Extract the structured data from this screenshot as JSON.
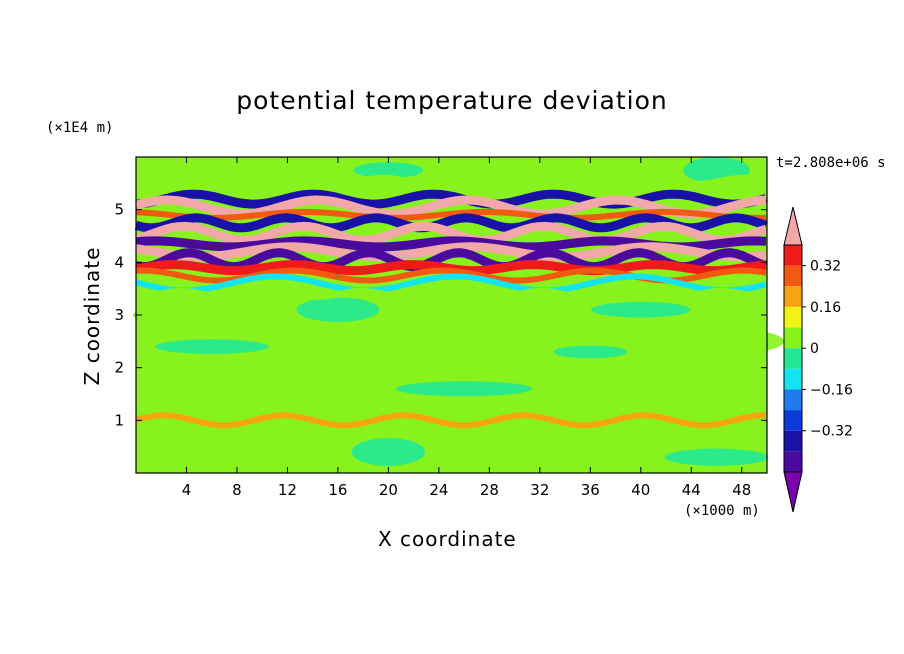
{
  "chart_data": {
    "type": "heatmap",
    "title": "potential temperature deviation",
    "xlabel": "X coordinate",
    "ylabel": "Z coordinate",
    "x_unit": "(×1000 m)",
    "y_unit": "(×1E4 m)",
    "time_label": "t=2.808e+06 s",
    "xlim": [
      0,
      50
    ],
    "ylim": [
      0,
      6
    ],
    "x_ticks": [
      4,
      8,
      12,
      16,
      20,
      24,
      28,
      32,
      36,
      40,
      44,
      48
    ],
    "y_ticks": [
      1,
      2,
      3,
      4,
      5
    ],
    "colorbar": {
      "levels": [
        -0.48,
        -0.4,
        -0.32,
        -0.24,
        -0.16,
        -0.08,
        0,
        0.08,
        0.16,
        0.24,
        0.32,
        0.4,
        0.48
      ],
      "labeled_levels": [
        0.32,
        0.16,
        0,
        -0.16,
        -0.32
      ],
      "colors": [
        "#7a00b0",
        "#4a0a9e",
        "#1a12a8",
        "#0a3bd6",
        "#1e7bf0",
        "#12e4f0",
        "#22e896",
        "#88f21c",
        "#f2f214",
        "#f5a510",
        "#f25a10",
        "#f01a1a",
        "#f2a8a8"
      ]
    },
    "bands": [
      {
        "z": 5.55,
        "value": 0.04
      },
      {
        "z": 5.2,
        "value": -0.36
      },
      {
        "z": 5.05,
        "value": 0.42
      },
      {
        "z": 4.9,
        "value": 0.3
      },
      {
        "z": 4.75,
        "value": -0.4
      },
      {
        "z": 4.55,
        "value": 0.45
      },
      {
        "z": 4.35,
        "value": -0.42
      },
      {
        "z": 4.2,
        "value": 0.4
      },
      {
        "z": 4.05,
        "value": -0.44
      },
      {
        "z": 3.9,
        "value": 0.36
      },
      {
        "z": 3.75,
        "value": 0.28
      },
      {
        "z": 3.6,
        "value": -0.12
      },
      {
        "z": 3.4,
        "value": 0.05
      },
      {
        "z": 1.0,
        "value": 0.2
      }
    ]
  }
}
